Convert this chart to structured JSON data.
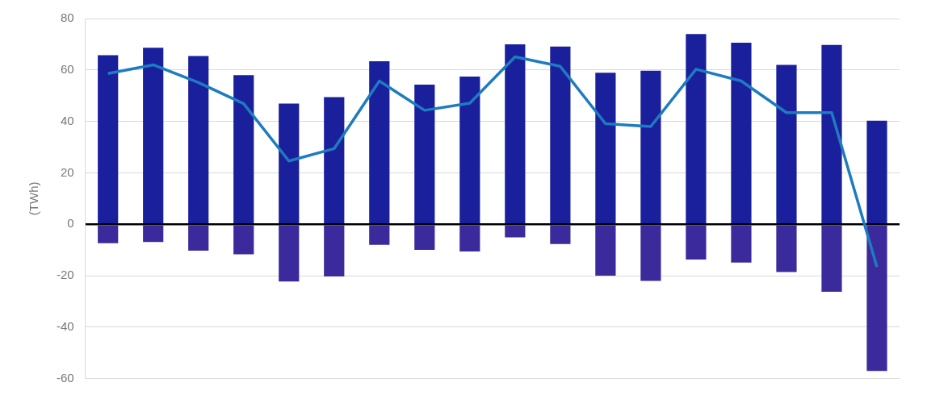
{
  "chart_data": {
    "type": "bar",
    "ylabel": "(TWh)",
    "stacked": true,
    "grid": "y",
    "legend": false,
    "categories": [
      null,
      null,
      null,
      null,
      null,
      null,
      null,
      null,
      null,
      null,
      null,
      null,
      null,
      null,
      null,
      null,
      null,
      null
    ],
    "ylim": [
      -60,
      80
    ],
    "yticks": [
      -60,
      -40,
      -20,
      0,
      20,
      40,
      60,
      80
    ],
    "series": [
      {
        "color": "#1a1f9c",
        "values": [
          65.7,
          68.6,
          65.4,
          58,
          46.9,
          49.4,
          63.4,
          54.3,
          57.4,
          70,
          69.1,
          58.9,
          59.7,
          74,
          70.6,
          62,
          69.7,
          40.3
        ]
      },
      {
        "color": "#3a2a9c",
        "values": [
          -7.4,
          -6.9,
          -10.3,
          -11.7,
          -22.3,
          -20.3,
          -8,
          -10,
          -10.6,
          -5.1,
          -7.7,
          -20,
          -22,
          -13.7,
          -14.9,
          -18.6,
          -26.3,
          -57.1
        ]
      },
      {
        "type": "line",
        "color": "#1f7bc0",
        "marker": "none",
        "values": [
          58.6,
          62,
          55.1,
          46.9,
          24.6,
          29.4,
          55.7,
          44.3,
          47.1,
          65.1,
          61.4,
          39.1,
          38,
          60.3,
          55.7,
          43.4,
          43.4,
          -16.6
        ]
      }
    ]
  }
}
